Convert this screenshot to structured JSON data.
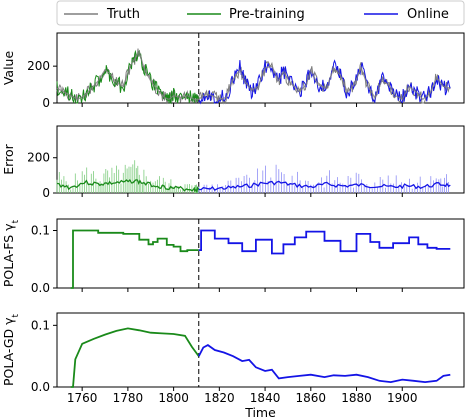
{
  "legend": {
    "truth": "Truth",
    "pretraining": "Pre-training",
    "online": "Online"
  },
  "colors": {
    "truth": "#7f7f7f",
    "pretraining": "#1a8a1a",
    "online": "#1414e6",
    "truth_light": "#b8b8b8",
    "pre_light": "#7fcc7f",
    "online_light": "#8f8ff5"
  },
  "chart_data": [
    {
      "type": "line",
      "ylabel": "Value",
      "ylim": [
        0,
        380
      ],
      "yticks": [
        0,
        200
      ],
      "pretraining_end_x": 1811,
      "series": [
        {
          "name": "Truth",
          "x": [
            1749,
            1752,
            1755,
            1758,
            1761,
            1764,
            1767,
            1770,
            1772,
            1775,
            1778,
            1781,
            1783,
            1785,
            1787,
            1790,
            1793,
            1796,
            1798,
            1800,
            1803,
            1806,
            1809,
            1811,
            1814,
            1817,
            1820,
            1823,
            1826,
            1829,
            1831,
            1834,
            1837,
            1840,
            1843,
            1846,
            1848,
            1851,
            1855,
            1858,
            1860,
            1863,
            1867,
            1870,
            1873,
            1876,
            1879,
            1882,
            1885,
            1888,
            1891,
            1894,
            1897,
            1900,
            1903,
            1906,
            1909,
            1912,
            1915,
            1918,
            1921
          ],
          "y": [
            80,
            60,
            40,
            20,
            40,
            80,
            120,
            180,
            160,
            110,
            90,
            200,
            240,
            280,
            190,
            120,
            70,
            30,
            20,
            40,
            30,
            40,
            20,
            20,
            50,
            40,
            20,
            30,
            130,
            180,
            120,
            70,
            90,
            190,
            200,
            120,
            170,
            110,
            60,
            100,
            180,
            100,
            80,
            190,
            150,
            60,
            100,
            190,
            90,
            30,
            120,
            100,
            40,
            20,
            90,
            60,
            20,
            50,
            140,
            90,
            80
          ]
        },
        {
          "name": "Pre-training",
          "x": [
            1749,
            1752,
            1755,
            1758,
            1761,
            1764,
            1767,
            1770,
            1772,
            1775,
            1778,
            1781,
            1783,
            1785,
            1787,
            1790,
            1793,
            1796,
            1798,
            1800,
            1803,
            1806,
            1809,
            1811
          ],
          "y": [
            85,
            55,
            45,
            25,
            35,
            85,
            115,
            185,
            150,
            115,
            85,
            195,
            250,
            270,
            200,
            115,
            80,
            40,
            25,
            40,
            30,
            35,
            25,
            20
          ]
        },
        {
          "name": "Online",
          "x": [
            1811,
            1814,
            1817,
            1820,
            1823,
            1826,
            1829,
            1831,
            1834,
            1837,
            1840,
            1843,
            1846,
            1848,
            1851,
            1855,
            1858,
            1860,
            1863,
            1867,
            1870,
            1873,
            1876,
            1879,
            1882,
            1885,
            1888,
            1891,
            1894,
            1897,
            1900,
            1903,
            1906,
            1909,
            1912,
            1915,
            1918,
            1921
          ],
          "y": [
            20,
            55,
            40,
            25,
            35,
            125,
            190,
            125,
            70,
            95,
            200,
            195,
            125,
            175,
            115,
            55,
            105,
            190,
            95,
            85,
            200,
            145,
            55,
            105,
            200,
            85,
            30,
            125,
            95,
            45,
            25,
            95,
            55,
            25,
            55,
            145,
            85,
            80
          ]
        }
      ]
    },
    {
      "type": "line",
      "ylabel": "Error",
      "ylim": [
        0,
        380
      ],
      "yticks": [
        0,
        200
      ],
      "series": [
        {
          "name": "Pre-training",
          "x": [
            1749,
            1755,
            1761,
            1767,
            1772,
            1778,
            1783,
            1787,
            1793,
            1798,
            1803,
            1809,
            1811
          ],
          "y": [
            50,
            30,
            60,
            50,
            55,
            60,
            70,
            55,
            40,
            30,
            25,
            20,
            20
          ]
        },
        {
          "name": "Online",
          "x": [
            1811,
            1818,
            1825,
            1832,
            1839,
            1846,
            1853,
            1860,
            1867,
            1874,
            1881,
            1888,
            1895,
            1902,
            1909,
            1916,
            1921
          ],
          "y": [
            20,
            25,
            30,
            40,
            55,
            60,
            45,
            35,
            50,
            40,
            45,
            40,
            35,
            40,
            35,
            50,
            45
          ]
        }
      ]
    },
    {
      "type": "line",
      "ylabel": "POLA-FS γ_t",
      "ylim": [
        0,
        0.12
      ],
      "yticks": [
        0.0,
        0.1
      ],
      "series": [
        {
          "name": "Pre-training",
          "x": [
            1755,
            1756,
            1756,
            1767,
            1767,
            1778,
            1778,
            1785,
            1785,
            1789,
            1789,
            1791,
            1791,
            1793,
            1793,
            1797,
            1797,
            1800,
            1800,
            1803,
            1803,
            1806,
            1806,
            1811
          ],
          "y": [
            0,
            0,
            0.1,
            0.1,
            0.096,
            0.096,
            0.094,
            0.094,
            0.084,
            0.084,
            0.076,
            0.076,
            0.08,
            0.08,
            0.086,
            0.086,
            0.075,
            0.075,
            0.072,
            0.072,
            0.064,
            0.064,
            0.066,
            0.066
          ]
        },
        {
          "name": "Online",
          "x": [
            1811,
            1812,
            1812,
            1818,
            1818,
            1824,
            1824,
            1830,
            1830,
            1836,
            1836,
            1843,
            1843,
            1848,
            1848,
            1853,
            1853,
            1858,
            1858,
            1866,
            1866,
            1873,
            1873,
            1880,
            1880,
            1886,
            1886,
            1890,
            1890,
            1896,
            1896,
            1903,
            1903,
            1907,
            1907,
            1911,
            1911,
            1915,
            1915,
            1921
          ],
          "y": [
            0.066,
            0.066,
            0.1,
            0.1,
            0.086,
            0.086,
            0.078,
            0.078,
            0.064,
            0.064,
            0.084,
            0.084,
            0.06,
            0.06,
            0.076,
            0.076,
            0.088,
            0.088,
            0.098,
            0.098,
            0.082,
            0.082,
            0.064,
            0.064,
            0.094,
            0.094,
            0.08,
            0.08,
            0.07,
            0.07,
            0.078,
            0.078,
            0.088,
            0.088,
            0.076,
            0.076,
            0.07,
            0.07,
            0.068,
            0.068
          ]
        }
      ]
    },
    {
      "type": "line",
      "ylabel": "POLA-GD γ_t",
      "ylim": [
        0,
        0.12
      ],
      "yticks": [
        0.0,
        0.1
      ],
      "xlabel": "Time",
      "xlim": [
        1749,
        1927
      ],
      "xticks": [
        1760,
        1780,
        1800,
        1820,
        1840,
        1860,
        1880,
        1900
      ],
      "series": [
        {
          "name": "Pre-training",
          "x": [
            1755,
            1756,
            1757,
            1760,
            1765,
            1770,
            1775,
            1780,
            1785,
            1790,
            1795,
            1800,
            1805,
            1808,
            1810,
            1811
          ],
          "y": [
            0,
            0,
            0.045,
            0.07,
            0.078,
            0.085,
            0.091,
            0.095,
            0.092,
            0.088,
            0.087,
            0.086,
            0.083,
            0.065,
            0.055,
            0.05
          ]
        },
        {
          "name": "Online",
          "x": [
            1811,
            1813,
            1815,
            1818,
            1822,
            1826,
            1830,
            1833,
            1836,
            1840,
            1843,
            1846,
            1850,
            1855,
            1860,
            1866,
            1870,
            1875,
            1880,
            1885,
            1890,
            1895,
            1900,
            1905,
            1910,
            1915,
            1918,
            1921
          ],
          "y": [
            0.05,
            0.064,
            0.068,
            0.06,
            0.056,
            0.05,
            0.042,
            0.044,
            0.032,
            0.026,
            0.028,
            0.014,
            0.016,
            0.018,
            0.02,
            0.016,
            0.019,
            0.018,
            0.02,
            0.016,
            0.01,
            0.008,
            0.012,
            0.01,
            0.008,
            0.01,
            0.018,
            0.02
          ]
        }
      ]
    }
  ]
}
